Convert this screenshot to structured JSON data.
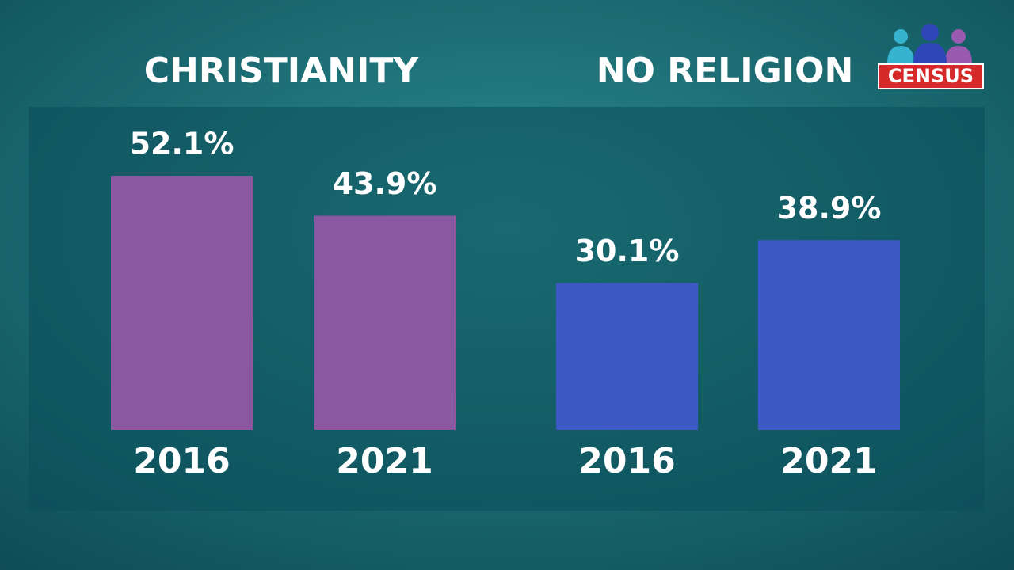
{
  "logo": "CENSUS",
  "chart_data": [
    {
      "type": "bar",
      "title": "CHRISTIANITY",
      "categories": [
        "2016",
        "2021"
      ],
      "values": [
        52.1,
        43.9
      ],
      "value_labels": [
        "52.1%",
        "43.9%"
      ],
      "color": "#8a58a0"
    },
    {
      "type": "bar",
      "title": "NO RELIGION",
      "categories": [
        "2016",
        "2021"
      ],
      "values": [
        30.1,
        38.9
      ],
      "value_labels": [
        "30.1%",
        "38.9%"
      ],
      "color": "#3e58c4"
    }
  ]
}
